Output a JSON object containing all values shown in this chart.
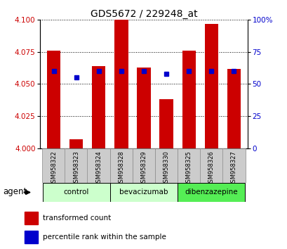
{
  "title": "GDS5672 / 229248_at",
  "samples": [
    "GSM958322",
    "GSM958323",
    "GSM958324",
    "GSM958328",
    "GSM958329",
    "GSM958330",
    "GSM958325",
    "GSM958326",
    "GSM958327"
  ],
  "bar_values": [
    4.076,
    4.007,
    4.064,
    4.1,
    4.063,
    4.038,
    4.076,
    4.097,
    4.062
  ],
  "percentile_values": [
    60,
    55,
    60,
    60,
    60,
    58,
    60,
    60,
    60
  ],
  "bar_color": "#cc0000",
  "dot_color": "#0000cc",
  "ylim_left": [
    4.0,
    4.1
  ],
  "ylim_right": [
    0,
    100
  ],
  "yticks_left": [
    4.0,
    4.025,
    4.05,
    4.075,
    4.1
  ],
  "yticks_right": [
    0,
    25,
    50,
    75,
    100
  ],
  "bar_width": 0.6,
  "baseline": 4.0,
  "tick_label_color_left": "#cc0000",
  "tick_label_color_right": "#0000cc",
  "group_info": [
    {
      "label": "control",
      "start": 0,
      "end": 2,
      "color": "#ccffcc"
    },
    {
      "label": "bevacizumab",
      "start": 3,
      "end": 5,
      "color": "#ccffcc"
    },
    {
      "label": "dibenzazepine",
      "start": 6,
      "end": 8,
      "color": "#55ee55"
    }
  ],
  "legend_red_label": "transformed count",
  "legend_blue_label": "percentile rank within the sample",
  "agent_label": "agent"
}
